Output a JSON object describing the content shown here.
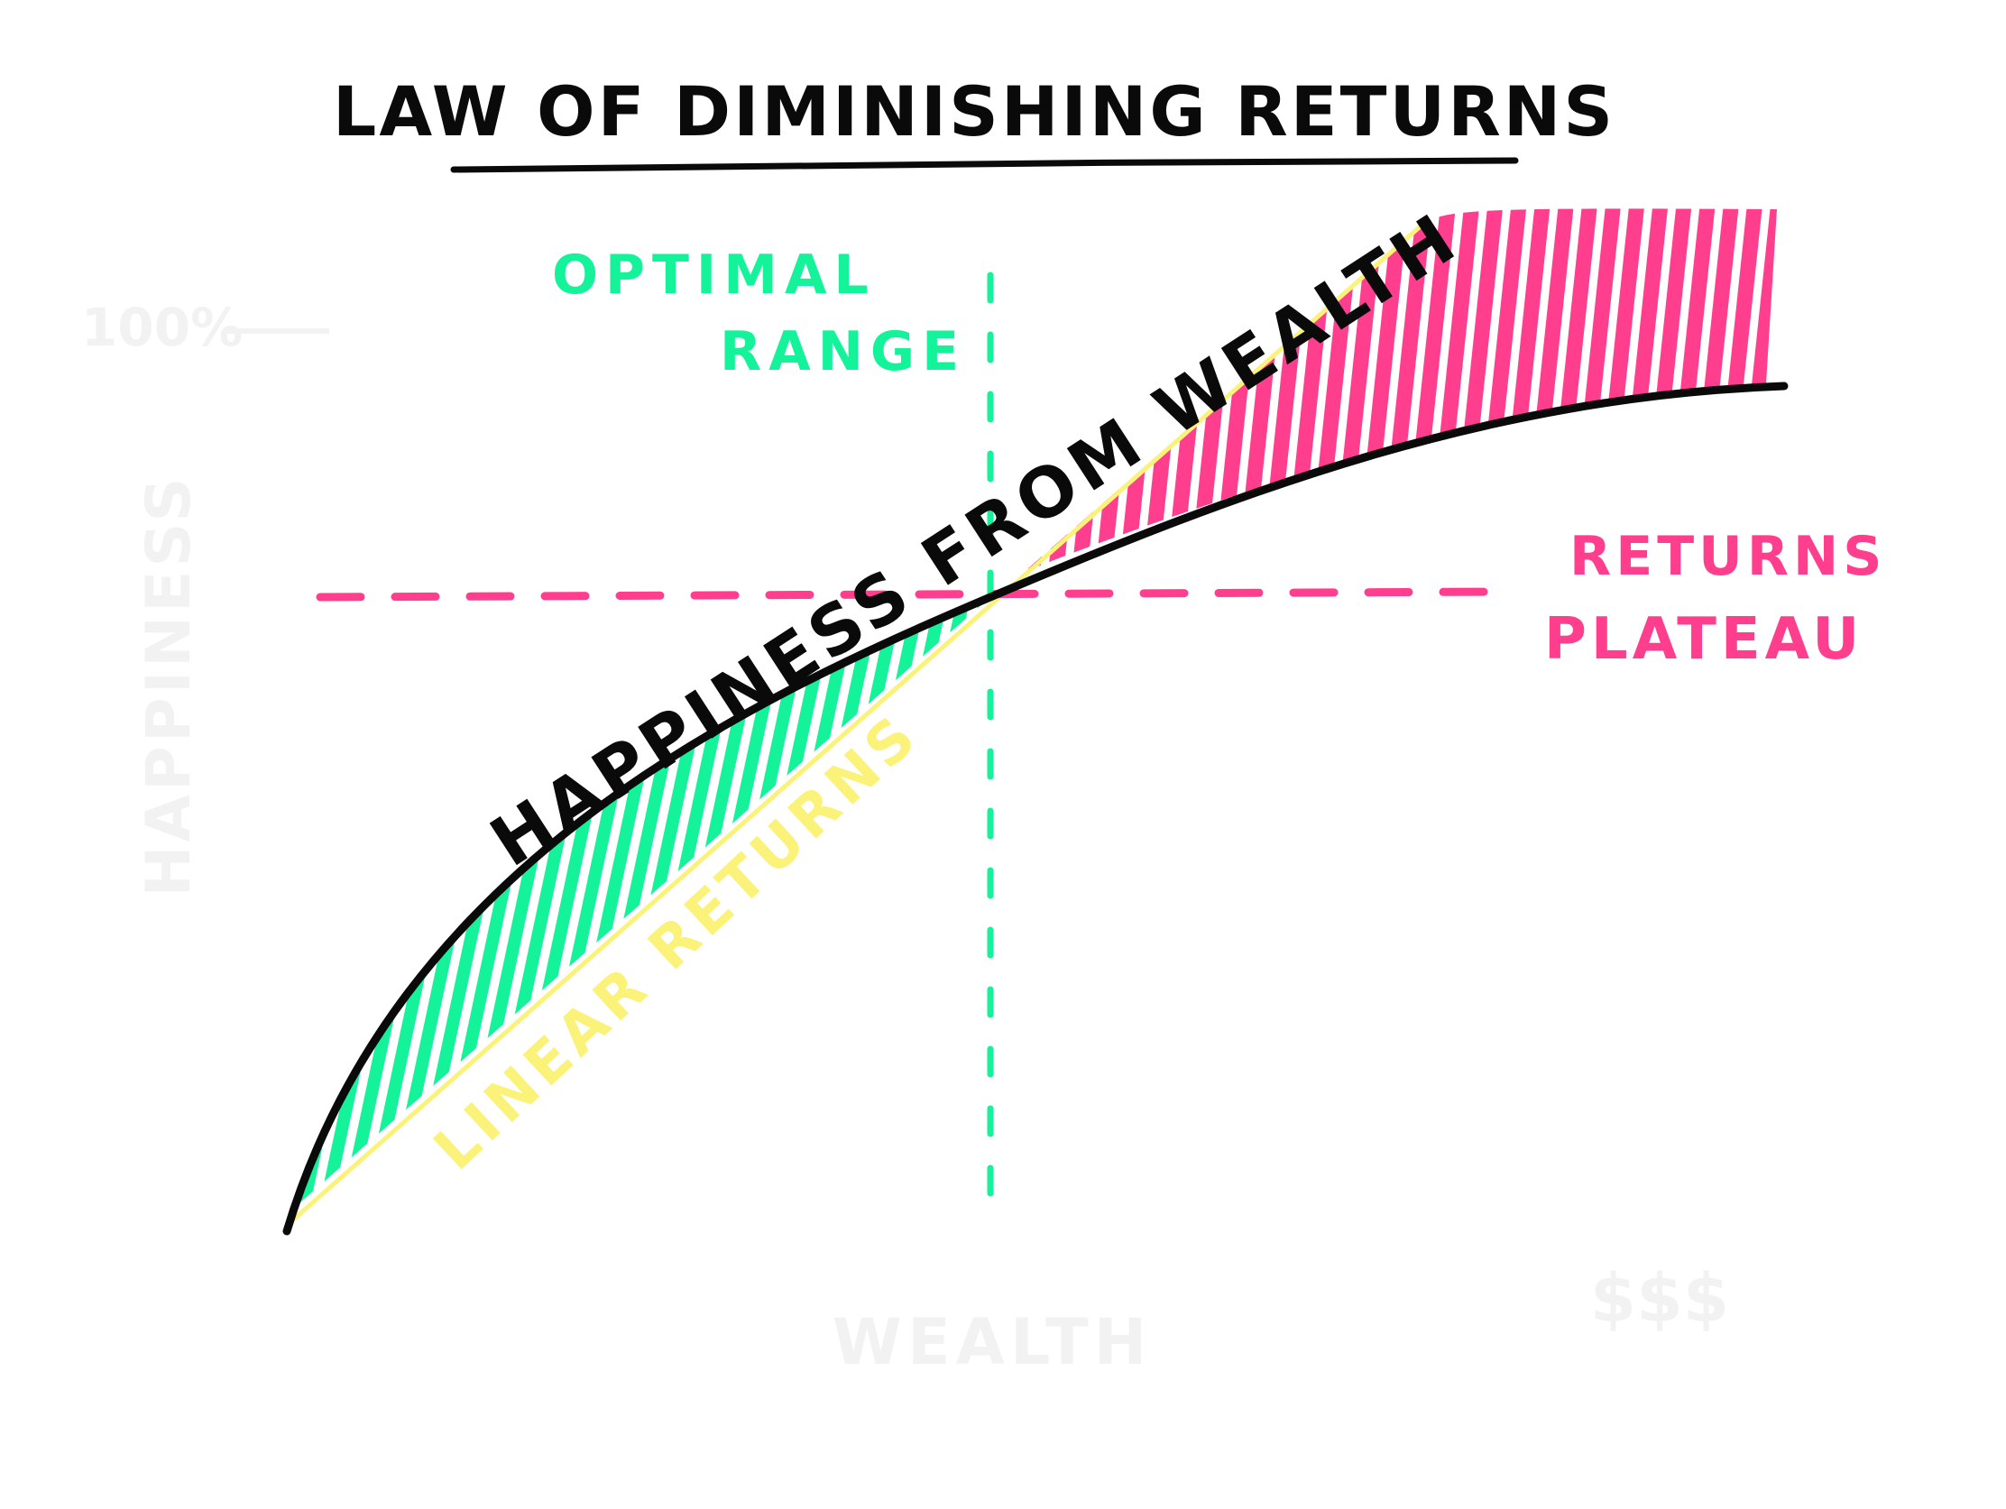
{
  "title": "LAW OF DIMINISHING RETURNS",
  "labels": {
    "optimal_line1": "OPTIMAL",
    "optimal_line2": "RANGE",
    "plateau_line1": "RETURNS",
    "plateau_line2": "PLATEAU",
    "curve_label": "HAPPINESS FROM WEALTH",
    "linear_label": "LINEAR RETURNS",
    "y_axis": "HAPPINESS",
    "x_axis": "WEALTH",
    "y_max": "100%",
    "x_max": "$$$"
  },
  "colors": {
    "ink": "#0a0a0a",
    "green": "#14f29a",
    "pink": "#ff3f8e",
    "yellow": "#fbf27a",
    "faint": "#f2f2f2"
  }
}
